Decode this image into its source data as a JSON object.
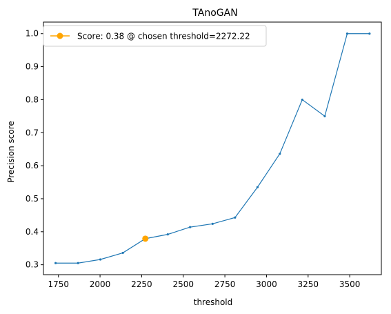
{
  "chart_data": {
    "type": "line",
    "title": "TAnoGAN",
    "xlabel": "threshold",
    "ylabel": "Precision score",
    "xlim": [
      1660,
      3690
    ],
    "ylim": [
      0.27,
      1.035
    ],
    "xticks": [
      1750,
      2000,
      2250,
      2500,
      2750,
      3000,
      3250,
      3500
    ],
    "yticks": [
      0.3,
      0.4,
      0.5,
      0.6,
      0.7,
      0.8,
      0.9,
      1.0
    ],
    "grid": false,
    "legend_position": "top-left",
    "series": [
      {
        "color": "#1f77b4",
        "x": [
          1733,
          1868,
          2002,
          2137,
          2272,
          2407,
          2541,
          2676,
          2811,
          2946,
          3080,
          3215,
          3350,
          3485,
          3619
        ],
        "y": [
          0.305,
          0.305,
          0.316,
          0.336,
          0.379,
          0.392,
          0.414,
          0.424,
          0.443,
          0.535,
          0.636,
          0.8,
          0.75,
          1.0,
          1.0
        ]
      }
    ],
    "marker": {
      "label": "Score: 0.38 @ chosen threshold=2272.22",
      "x": 2272.22,
      "y": 0.379,
      "color": "#ffa500"
    }
  }
}
